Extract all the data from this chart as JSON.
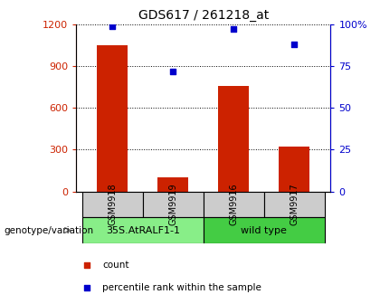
{
  "title": "GDS617 / 261218_at",
  "categories": [
    "GSM9918",
    "GSM9919",
    "GSM9916",
    "GSM9917"
  ],
  "bar_values": [
    1050,
    100,
    760,
    320
  ],
  "percentile_values": [
    99,
    72,
    97,
    88
  ],
  "bar_color": "#cc2200",
  "dot_color": "#0000cc",
  "ylim_left": [
    0,
    1200
  ],
  "ylim_right": [
    0,
    100
  ],
  "yticks_left": [
    0,
    300,
    600,
    900,
    1200
  ],
  "ytick_labels_left": [
    "0",
    "300",
    "600",
    "900",
    "1200"
  ],
  "yticks_right": [
    0,
    25,
    50,
    75,
    100
  ],
  "ytick_labels_right": [
    "0",
    "25",
    "50",
    "75",
    "100%"
  ],
  "groups": [
    {
      "label": "35S.AtRALF1-1",
      "indices": [
        0,
        1
      ],
      "color": "#88ee88"
    },
    {
      "label": "wild type",
      "indices": [
        2,
        3
      ],
      "color": "#44cc44"
    }
  ],
  "genotype_label": "genotype/variation",
  "legend_items": [
    {
      "label": "count",
      "color": "#cc2200",
      "marker": "s"
    },
    {
      "label": "percentile rank within the sample",
      "color": "#0000cc",
      "marker": "s"
    }
  ],
  "background_color": "#ffffff",
  "sample_area_color": "#cccccc",
  "figsize": [
    4.2,
    3.36
  ],
  "dpi": 100
}
